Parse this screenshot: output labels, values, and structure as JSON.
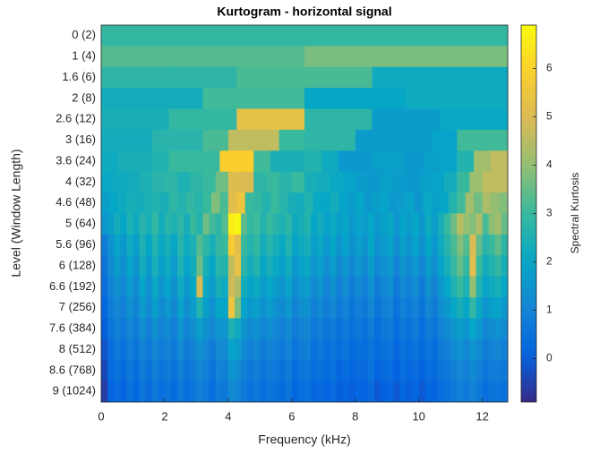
{
  "chart_data": {
    "type": "heatmap",
    "title": "Kurtogram - horizontal signal",
    "xlabel": "Frequency (kHz)",
    "ylabel": "Level (Window Length)",
    "colorbar_label": "Spectral Kurtosis",
    "colormap": "parula",
    "xlim": [
      0,
      12.8
    ],
    "xticks": [
      0,
      2,
      4,
      6,
      8,
      10,
      12
    ],
    "clim": [
      -0.9,
      6.9
    ],
    "cticks": [
      0,
      1,
      2,
      3,
      4,
      5,
      6
    ],
    "categories": [
      "0 (2)",
      "1 (4)",
      "1.6 (6)",
      "2 (8)",
      "2.6 (12)",
      "3 (16)",
      "3.6 (24)",
      "4 (32)",
      "4.6 (48)",
      "5 (64)",
      "5.6 (96)",
      "6 (128)",
      "6.6 (192)",
      "7 (256)",
      "7.6 (384)",
      "8 (512)",
      "8.6 (768)",
      "9 (1024)"
    ],
    "values": [
      [
        2.9,
        2.9
      ],
      [
        3.3,
        3.3,
        3.7,
        3.7
      ],
      [
        2.8,
        2.8,
        3.2,
        3.2,
        2.2,
        2.2
      ],
      [
        2.3,
        2.3,
        3.1,
        3.1,
        2.0,
        2.0,
        2.2,
        2.2
      ],
      [
        2.4,
        2.4,
        2.9,
        2.9,
        5.3,
        5.3,
        2.8,
        2.8,
        1.7,
        1.7,
        2.1,
        2.1
      ],
      [
        2.3,
        2.3,
        2.7,
        2.7,
        3.2,
        4.6,
        4.6,
        3.0,
        2.8,
        2.8,
        1.7,
        1.7,
        1.7,
        1.9,
        3.1,
        3.1
      ],
      [
        2.2,
        2.4,
        2.4,
        2.6,
        3.0,
        3.0,
        3.0,
        5.9,
        5.9,
        3.1,
        2.4,
        2.4,
        2.6,
        2.2,
        1.6,
        1.6,
        1.8,
        1.8,
        1.6,
        1.8,
        1.9,
        2.6,
        4.2,
        4.6
      ],
      [
        2.1,
        2.2,
        2.3,
        2.5,
        2.7,
        2.8,
        2.5,
        2.8,
        3.0,
        3.6,
        5.1,
        5.0,
        2.8,
        3.0,
        2.7,
        3.0,
        2.4,
        2.3,
        2.1,
        1.9,
        1.7,
        1.6,
        1.8,
        1.7,
        1.6,
        1.8,
        1.9,
        2.3,
        3.0,
        4.1,
        4.6,
        4.6
      ],
      [
        1.8,
        2.0,
        2.2,
        2.4,
        2.3,
        2.5,
        2.6,
        2.4,
        2.8,
        2.6,
        2.9,
        2.7,
        3.0,
        3.8,
        3.2,
        5.2,
        5.5,
        3.0,
        2.9,
        2.6,
        3.0,
        2.7,
        2.4,
        2.3,
        2.6,
        2.1,
        2.0,
        2.3,
        1.9,
        1.7,
        2.0,
        1.6,
        1.8,
        1.9,
        1.6,
        1.7,
        1.9,
        1.5,
        2.1,
        1.8,
        2.0,
        2.6,
        3.1,
        4.2,
        3.6,
        4.3,
        4.0,
        3.8
      ],
      [
        1.5,
        1.8,
        2.3,
        2.0,
        2.5,
        2.2,
        2.7,
        2.4,
        2.9,
        2.3,
        2.7,
        2.5,
        2.8,
        2.4,
        3.0,
        2.6,
        3.6,
        3.1,
        2.8,
        3.3,
        6.6,
        6.8,
        3.4,
        2.9,
        3.1,
        2.6,
        3.0,
        2.7,
        2.5,
        2.8,
        2.2,
        2.4,
        2.6,
        2.0,
        2.3,
        1.9,
        2.1,
        1.8,
        2.0,
        1.6,
        1.9,
        1.7,
        2.0,
        1.6,
        1.8,
        2.1,
        1.5,
        1.9,
        1.7,
        2.0,
        1.6,
        2.2,
        1.8,
        2.4,
        3.0,
        3.6,
        4.5,
        4.0,
        3.8,
        4.4,
        3.2,
        3.9,
        4.2,
        3.5
      ],
      [
        0.8,
        1.4,
        1.9,
        1.6,
        2.2,
        1.8,
        2.5,
        2.0,
        2.6,
        2.1,
        2.4,
        2.0,
        2.7,
        2.2,
        2.5,
        3.3,
        2.8,
        2.4,
        2.9,
        3.0,
        5.8,
        5.2,
        3.0,
        2.6,
        2.9,
        2.3,
        2.7,
        2.4,
        2.1,
        2.6,
        1.9,
        2.2,
        2.4,
        1.8,
        2.1,
        1.6,
        2.0,
        1.5,
        1.9,
        1.4,
        1.8,
        1.5,
        2.0,
        1.4,
        1.7,
        1.9,
        1.3,
        1.8,
        1.5,
        1.9,
        1.4,
        2.0,
        1.6,
        2.2,
        2.7,
        3.2,
        3.8,
        3.3,
        5.0,
        3.5,
        2.7,
        3.0,
        3.4,
        2.8
      ],
      [
        0.6,
        1.2,
        1.7,
        1.3,
        2.0,
        1.5,
        2.3,
        1.7,
        2.4,
        1.8,
        2.2,
        1.7,
        2.5,
        1.9,
        2.3,
        3.6,
        2.4,
        2.0,
        2.7,
        2.6,
        4.6,
        5.3,
        2.7,
        2.3,
        2.6,
        2.0,
        2.4,
        2.1,
        1.8,
        2.3,
        1.6,
        1.9,
        2.1,
        1.5,
        1.8,
        1.3,
        1.7,
        1.2,
        1.6,
        1.1,
        1.5,
        1.2,
        1.7,
        1.1,
        1.4,
        1.6,
        1.0,
        1.5,
        1.2,
        1.6,
        1.1,
        1.7,
        1.3,
        1.9,
        2.4,
        2.9,
        3.5,
        2.9,
        5.2,
        3.0,
        2.3,
        2.6,
        2.9,
        2.4
      ],
      [
        0.4,
        1.0,
        1.4,
        1.1,
        1.7,
        1.2,
        2.0,
        1.4,
        2.1,
        1.5,
        1.9,
        1.4,
        2.2,
        1.6,
        2.0,
        5.0,
        2.1,
        1.7,
        2.4,
        2.2,
        4.8,
        4.4,
        2.3,
        1.9,
        2.2,
        1.7,
        2.0,
        1.7,
        1.5,
        1.9,
        1.3,
        1.6,
        1.7,
        1.2,
        1.5,
        1.0,
        1.4,
        0.9,
        1.3,
        0.8,
        1.2,
        0.9,
        1.4,
        0.8,
        1.1,
        1.3,
        0.7,
        1.2,
        0.9,
        1.3,
        0.8,
        1.4,
        1.0,
        1.6,
        2.0,
        2.5,
        3.0,
        2.5,
        4.0,
        2.6,
        1.9,
        2.2,
        2.4,
        2.0
      ],
      [
        0.2,
        0.8,
        1.1,
        0.9,
        1.4,
        1.0,
        1.7,
        1.2,
        1.8,
        1.2,
        1.6,
        1.1,
        1.9,
        1.3,
        1.7,
        2.6,
        1.8,
        1.4,
        2.0,
        1.9,
        5.5,
        3.7,
        1.9,
        1.6,
        1.8,
        1.4,
        1.7,
        1.4,
        1.2,
        1.6,
        1.0,
        1.3,
        1.4,
        0.9,
        1.2,
        0.8,
        1.1,
        0.7,
        1.0,
        0.6,
        0.9,
        0.7,
        1.1,
        0.6,
        0.9,
        1.0,
        0.5,
        0.9,
        0.7,
        1.0,
        0.6,
        1.1,
        0.8,
        1.3,
        1.6,
        2.0,
        2.4,
        2.0,
        2.9,
        2.1,
        1.5,
        1.8,
        1.9,
        1.6
      ],
      [
        0.0,
        0.6,
        0.9,
        0.7,
        1.1,
        0.8,
        1.3,
        0.9,
        1.4,
        1.0,
        1.2,
        0.9,
        1.5,
        1.0,
        1.3,
        1.8,
        1.4,
        1.1,
        1.5,
        1.5,
        2.5,
        2.2,
        1.5,
        1.2,
        1.4,
        1.1,
        1.3,
        1.1,
        0.9,
        1.2,
        0.8,
        1.0,
        1.1,
        0.7,
        0.9,
        0.6,
        0.8,
        0.5,
        0.8,
        0.5,
        0.7,
        0.5,
        0.8,
        0.4,
        0.7,
        0.8,
        0.4,
        0.7,
        0.5,
        0.8,
        0.4,
        0.8,
        0.6,
        1.0,
        1.2,
        1.5,
        1.8,
        1.5,
        2.0,
        1.6,
        1.1,
        1.3,
        1.4,
        1.2
      ],
      [
        -0.2,
        0.4,
        0.7,
        0.5,
        0.9,
        0.6,
        1.0,
        0.7,
        1.1,
        0.8,
        1.0,
        0.7,
        1.2,
        0.8,
        1.0,
        1.4,
        1.1,
        0.8,
        1.2,
        1.2,
        1.9,
        1.7,
        1.2,
        0.9,
        1.1,
        0.8,
        1.0,
        0.9,
        0.7,
        1.0,
        0.6,
        0.8,
        0.9,
        0.5,
        0.7,
        0.4,
        0.6,
        0.4,
        0.6,
        0.3,
        0.5,
        0.4,
        0.6,
        0.3,
        0.5,
        0.6,
        0.2,
        0.5,
        0.4,
        0.6,
        0.3,
        0.6,
        0.4,
        0.8,
        0.9,
        1.2,
        1.4,
        1.1,
        1.5,
        1.2,
        0.8,
        1.0,
        1.1,
        0.9
      ],
      [
        -0.4,
        0.3,
        0.5,
        0.3,
        0.7,
        0.4,
        0.8,
        0.5,
        0.9,
        0.6,
        0.8,
        0.5,
        0.9,
        0.6,
        0.8,
        1.1,
        0.9,
        0.6,
        1.0,
        0.9,
        1.5,
        1.3,
        0.9,
        0.7,
        0.9,
        0.6,
        0.8,
        0.7,
        0.5,
        0.8,
        0.4,
        0.6,
        0.7,
        0.4,
        0.5,
        0.3,
        0.5,
        0.2,
        0.4,
        0.2,
        0.4,
        0.3,
        0.5,
        0.1,
        0.3,
        0.4,
        0.1,
        0.4,
        0.2,
        0.4,
        0.1,
        0.4,
        0.3,
        0.6,
        0.7,
        0.9,
        1.1,
        0.9,
        1.2,
        0.9,
        0.6,
        0.8,
        0.8,
        0.7
      ],
      [
        -0.6,
        0.1,
        0.3,
        0.1,
        0.5,
        0.2,
        0.6,
        0.3,
        0.7,
        0.4,
        0.6,
        0.3,
        0.7,
        0.4,
        0.6,
        0.9,
        0.7,
        0.4,
        0.8,
        0.7,
        1.2,
        1.0,
        0.7,
        0.5,
        0.7,
        0.4,
        0.6,
        0.5,
        0.3,
        0.6,
        0.2,
        0.4,
        0.5,
        0.2,
        0.3,
        0.1,
        0.3,
        0.0,
        0.2,
        0.0,
        0.2,
        0.1,
        0.3,
        -0.1,
        0.1,
        0.2,
        -0.1,
        0.2,
        0.0,
        0.2,
        -0.1,
        0.2,
        0.1,
        0.4,
        0.5,
        0.7,
        0.9,
        0.7,
        1.0,
        0.7,
        0.4,
        0.6,
        0.6,
        0.5
      ]
    ]
  }
}
